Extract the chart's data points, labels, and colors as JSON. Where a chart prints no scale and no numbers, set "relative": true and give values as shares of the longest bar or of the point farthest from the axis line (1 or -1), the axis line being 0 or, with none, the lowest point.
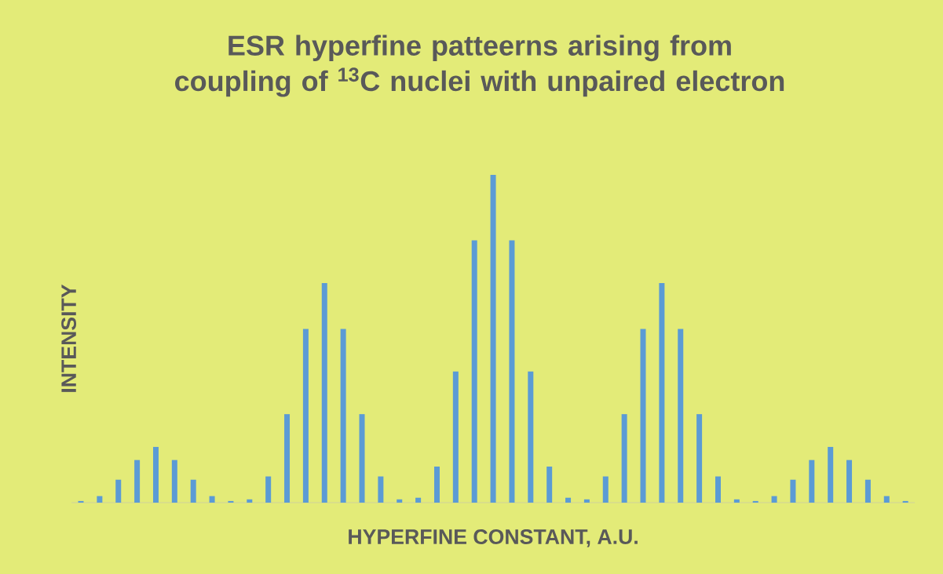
{
  "chart_data": {
    "type": "bar",
    "title": "ESR hyperfine patteerns arising from coupling of $^{13}$C nuclei with unpaired electron",
    "xlabel": "HYPERFINE CONSTANT, A.U.",
    "ylabel": "INTENSITY",
    "relative": true,
    "color": "#5b9bd5",
    "categories": [
      null,
      null,
      null,
      null,
      null,
      null,
      null,
      null,
      null,
      null,
      null,
      null,
      null,
      null,
      null,
      null,
      null,
      null,
      null,
      null,
      null,
      null,
      null,
      null,
      null,
      null,
      null,
      null,
      null,
      null,
      null,
      null,
      null,
      null,
      null,
      null,
      null,
      null,
      null,
      null,
      null,
      null,
      null,
      null,
      null
    ],
    "values": [
      0.005,
      0.02,
      0.07,
      0.13,
      0.17,
      0.13,
      0.07,
      0.02,
      0.005,
      0.01,
      0.08,
      0.27,
      0.53,
      0.67,
      0.53,
      0.27,
      0.08,
      0.01,
      0.015,
      0.11,
      0.4,
      0.8,
      1,
      0.8,
      0.4,
      0.11,
      0.015,
      0.01,
      0.08,
      0.27,
      0.53,
      0.67,
      0.53,
      0.27,
      0.08,
      0.01,
      0.005,
      0.02,
      0.07,
      0.13,
      0.17,
      0.13,
      0.07,
      0.02,
      0.005
    ]
  }
}
